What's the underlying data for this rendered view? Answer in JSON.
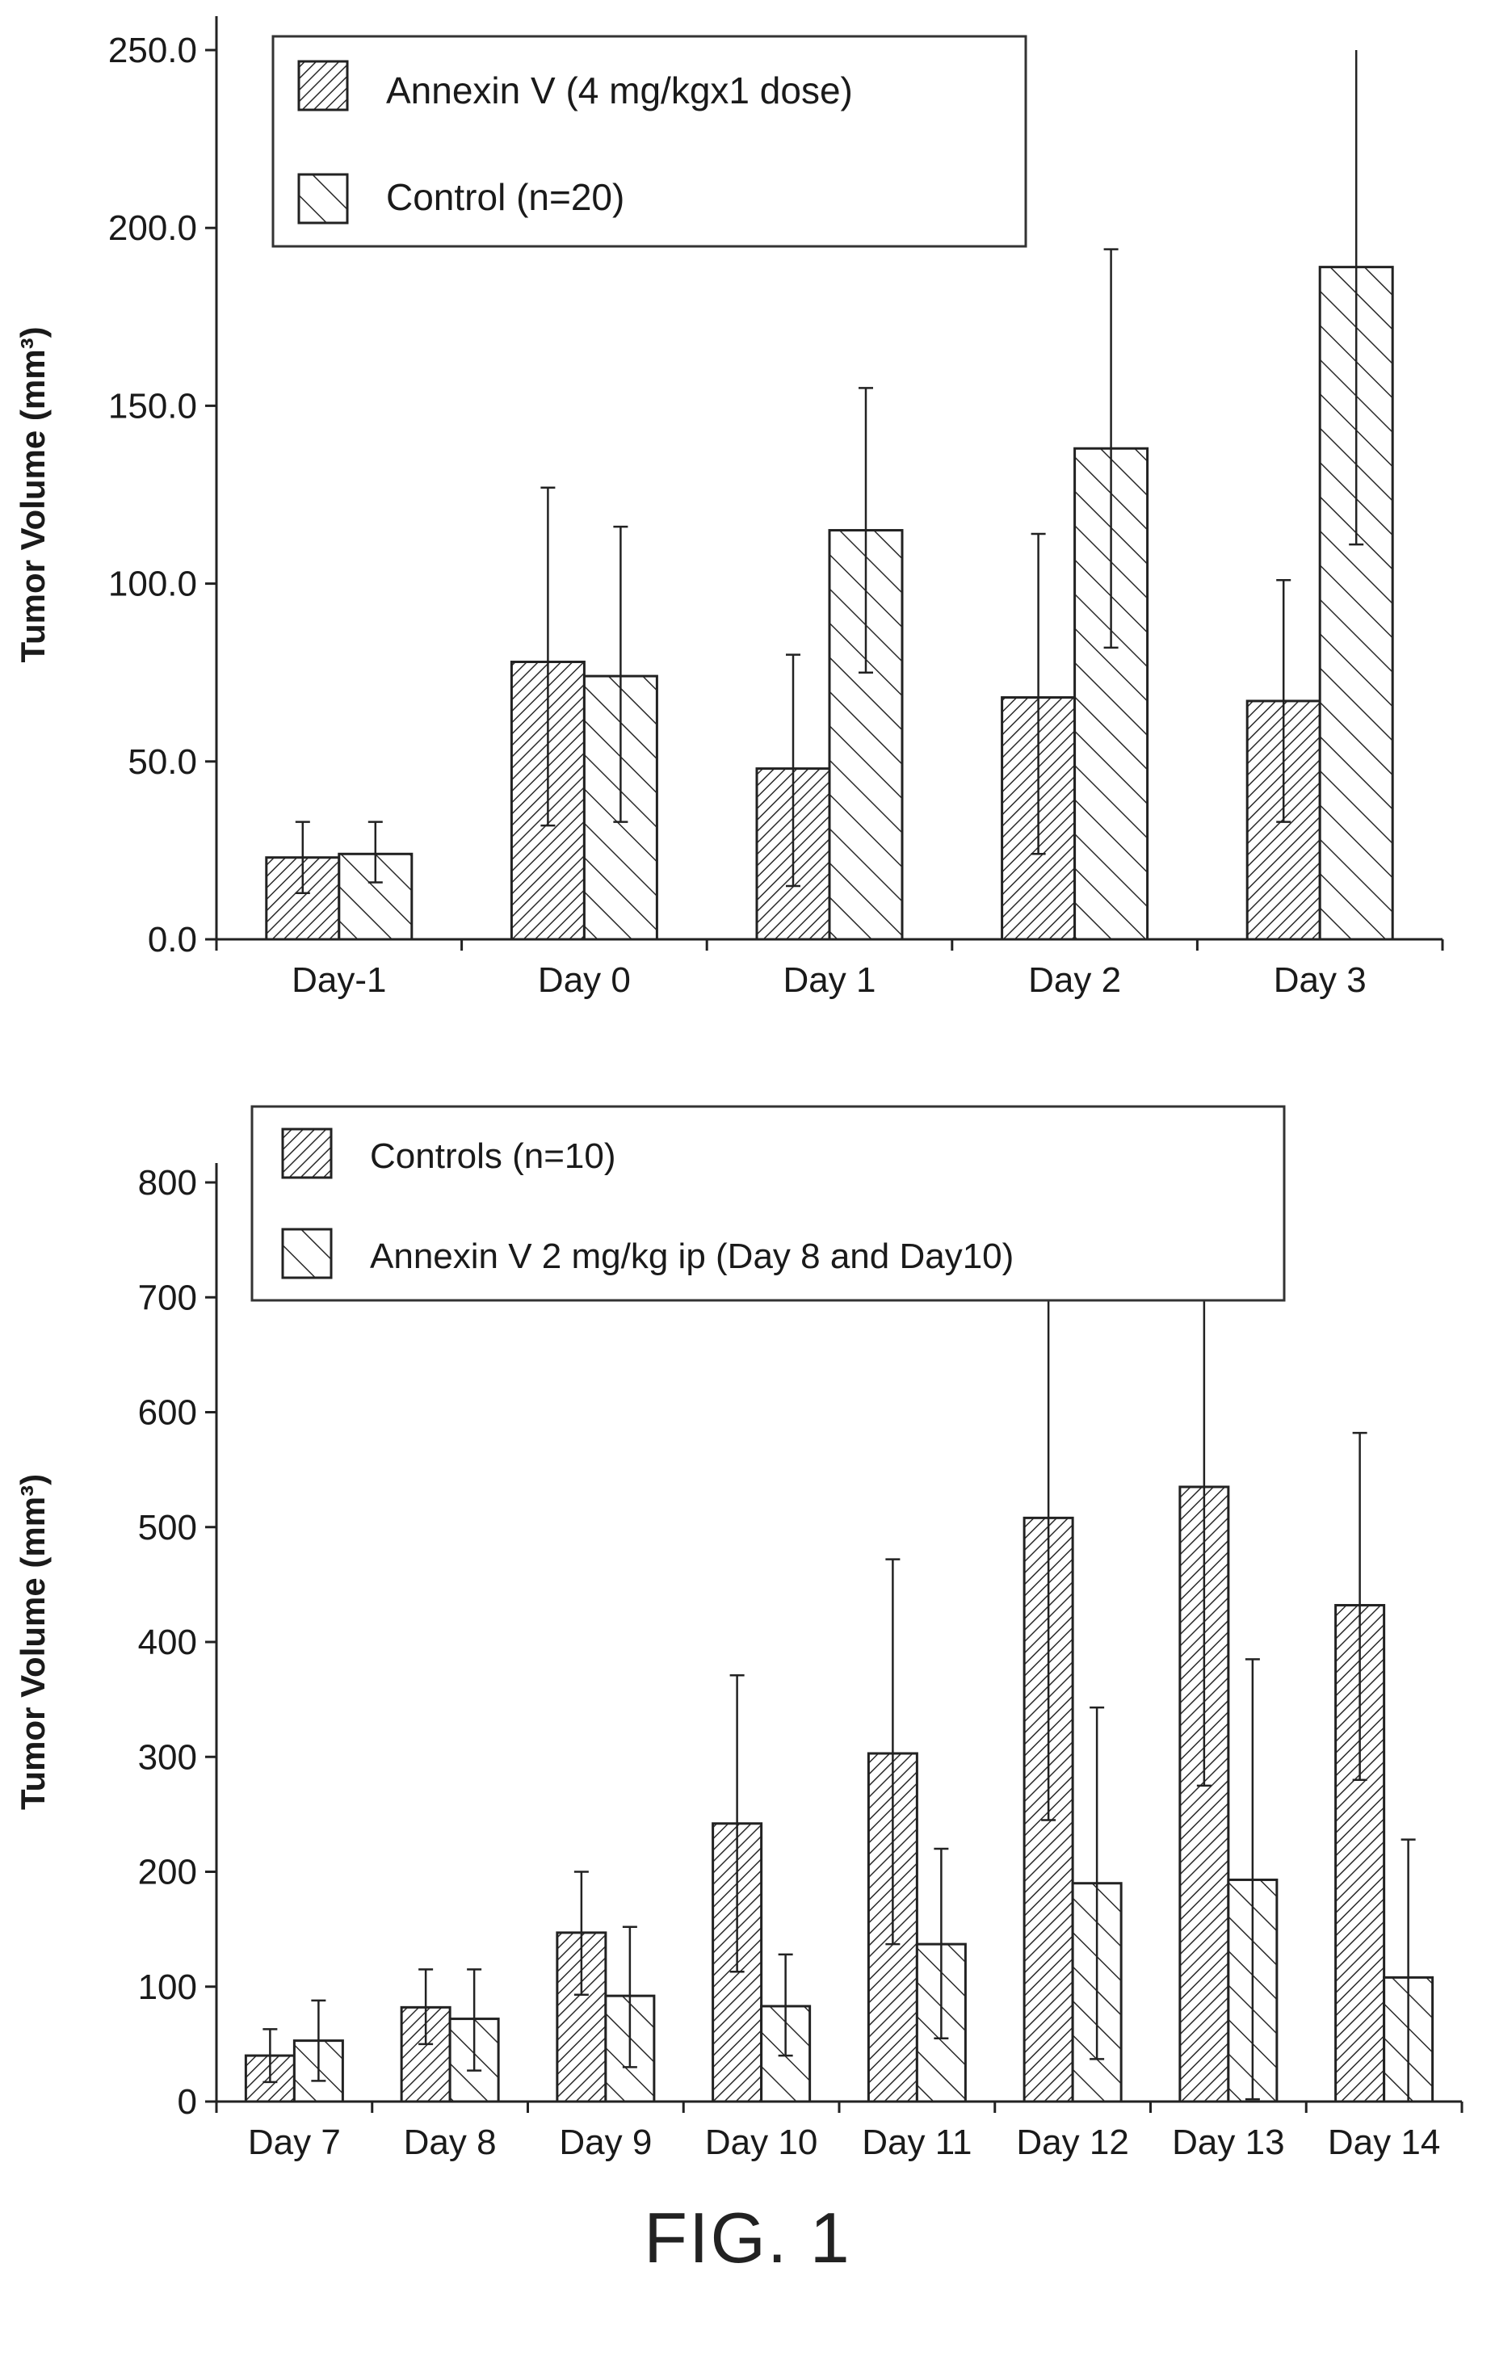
{
  "figure_caption": "FIG. 1",
  "chart_data": [
    {
      "type": "bar",
      "title": "",
      "xlabel": "",
      "ylabel": "Tumor Volume (mm³)",
      "ylim": [
        0,
        250
      ],
      "yticks": [
        0,
        50,
        100,
        150,
        200,
        250
      ],
      "ytick_labels": [
        "0.0",
        "50.0",
        "100.0",
        "150.0",
        "200.0",
        "250.0"
      ],
      "legend_position": "top-left",
      "categories": [
        "Day-1",
        "Day 0",
        "Day 1",
        "Day 2",
        "Day 3"
      ],
      "series": [
        {
          "name": "Annexin V (4 mg/kgx1 dose)",
          "pattern": "dense-hatch",
          "values": [
            23,
            78,
            48,
            68,
            67
          ],
          "error_upper": [
            33,
            127,
            80,
            114,
            101
          ],
          "error_lower": [
            13,
            32,
            15,
            24,
            33
          ]
        },
        {
          "name": "Control (n=20)",
          "pattern": "sparse-hatch",
          "values": [
            24,
            74,
            115,
            138,
            189
          ],
          "error_upper": [
            33,
            116,
            155,
            194,
            260
          ],
          "error_lower": [
            16,
            33,
            75,
            82,
            111
          ]
        }
      ]
    },
    {
      "type": "bar",
      "title": "",
      "xlabel": "",
      "ylabel": "Tumor Volume (mm³)",
      "ylim": [
        0,
        800
      ],
      "yticks": [
        0,
        100,
        200,
        300,
        400,
        500,
        600,
        700,
        800
      ],
      "ytick_labels": [
        "0",
        "100",
        "200",
        "300",
        "400",
        "500",
        "600",
        "700",
        "800"
      ],
      "legend_position": "top",
      "categories": [
        "Day 7",
        "Day 8",
        "Day 9",
        "Day 10",
        "Day 11",
        "Day 12",
        "Day 13",
        "Day 14"
      ],
      "series": [
        {
          "name": "Controls (n=10)",
          "pattern": "dense-hatch",
          "values": [
            40,
            82,
            147,
            242,
            303,
            508,
            535,
            432
          ],
          "error_upper": [
            63,
            115,
            200,
            371,
            472,
            770,
            800,
            582
          ],
          "error_lower": [
            17,
            50,
            93,
            113,
            137,
            245,
            275,
            280
          ]
        },
        {
          "name": "Annexin V 2 mg/kg ip (Day 8 and Day10)",
          "pattern": "sparse-hatch",
          "values": [
            53,
            72,
            92,
            83,
            137,
            190,
            193,
            108
          ],
          "error_upper": [
            88,
            115,
            152,
            128,
            220,
            343,
            385,
            228
          ],
          "error_lower": [
            18,
            27,
            30,
            40,
            55,
            37,
            2,
            0
          ]
        }
      ]
    }
  ]
}
